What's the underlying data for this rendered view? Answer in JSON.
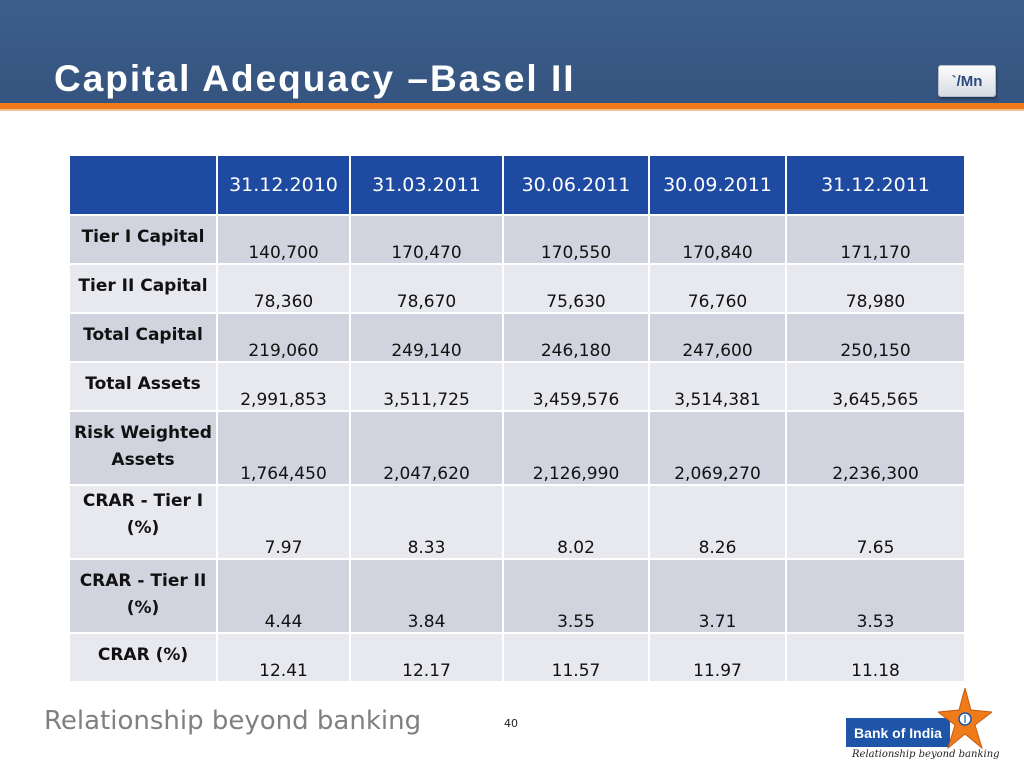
{
  "slide": {
    "title": "Capital Adequacy –Basel II",
    "unit_badge": "`/Mn",
    "page_number": "40",
    "slogan": "Relationship beyond banking"
  },
  "table": {
    "columns": [
      "31.12.2010",
      "31.03.2011",
      "30.06.2011",
      "30.09.2011",
      "31.12.2011"
    ],
    "rows": [
      {
        "label": "Tier I Capital",
        "values": [
          "140,700",
          "170,470",
          "170,550",
          "170,840",
          "171,170"
        ]
      },
      {
        "label": "Tier II Capital",
        "values": [
          "78,360",
          "78,670",
          "75,630",
          "76,760",
          "78,980"
        ]
      },
      {
        "label": "Total Capital",
        "values": [
          "219,060",
          "249,140",
          "246,180",
          "247,600",
          "250,150"
        ]
      },
      {
        "label": "Total Assets",
        "values": [
          "2,991,853",
          "3,511,725",
          "3,459,576",
          "3,514,381",
          "3,645,565"
        ]
      },
      {
        "label": "Risk Weighted Assets",
        "values": [
          "1,764,450",
          "2,047,620",
          "2,126,990",
          "2,069,270",
          "2,236,300"
        ]
      },
      {
        "label": "CRAR - Tier I (%)",
        "values": [
          "7.97",
          "8.33",
          "8.02",
          "8.26",
          "7.65"
        ]
      },
      {
        "label": "CRAR - Tier II (%)",
        "values": [
          "4.44",
          "3.84",
          "3.55",
          "3.71",
          "3.53"
        ]
      },
      {
        "label": "CRAR (%)",
        "values": [
          "12.41",
          "12.17",
          "11.57",
          "11.97",
          "11.18"
        ]
      }
    ]
  },
  "logo": {
    "name": "Bank of India",
    "tagline": "Relationship beyond banking",
    "colors": {
      "blue": "#1f55a8",
      "orange": "#f07b1a"
    }
  },
  "colors": {
    "header_bg": "#3d5f8c",
    "accent_line": "#f07b1a",
    "table_header": "#1e4aa1",
    "row_dark": "#d1d4de",
    "row_light": "#e8e9ee"
  }
}
